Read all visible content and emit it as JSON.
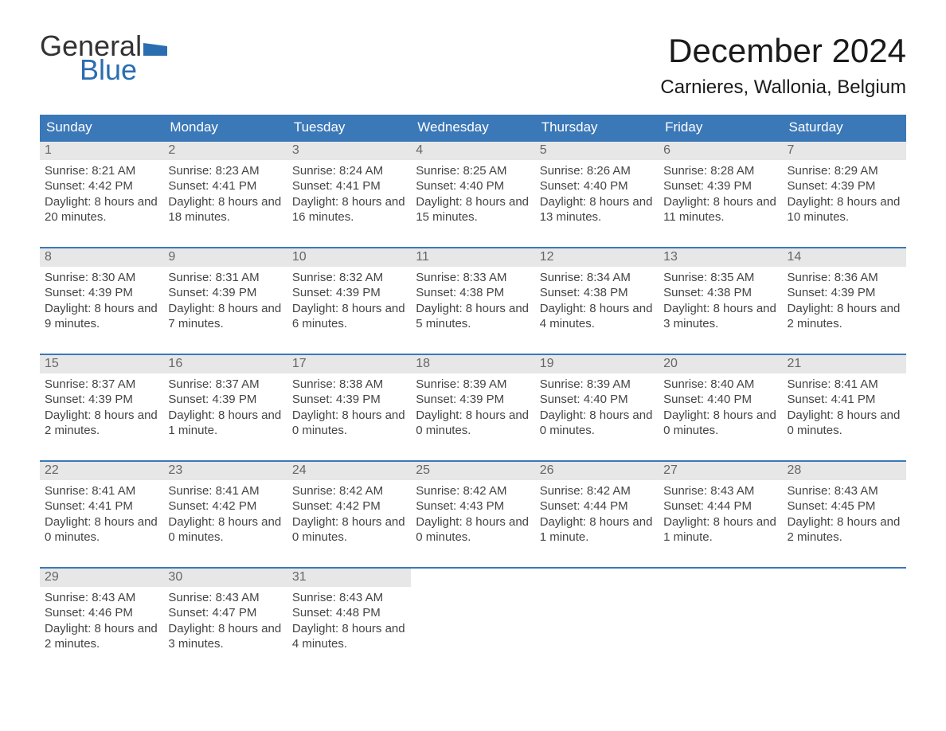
{
  "logo": {
    "general": "General",
    "blue": "Blue",
    "flag_color": "#2a6db0"
  },
  "title": "December 2024",
  "location": "Carnieres, Wallonia, Belgium",
  "header_bg": "#3b78b8",
  "header_text_color": "#ffffff",
  "daynum_bg": "#e7e7e7",
  "daynum_color": "#666666",
  "body_text_color": "#444444",
  "border_color": "#3b78b8",
  "background_color": "#ffffff",
  "days_of_week": [
    "Sunday",
    "Monday",
    "Tuesday",
    "Wednesday",
    "Thursday",
    "Friday",
    "Saturday"
  ],
  "weeks": [
    [
      {
        "n": "1",
        "sunrise": "Sunrise: 8:21 AM",
        "sunset": "Sunset: 4:42 PM",
        "daylight": "Daylight: 8 hours and 20 minutes."
      },
      {
        "n": "2",
        "sunrise": "Sunrise: 8:23 AM",
        "sunset": "Sunset: 4:41 PM",
        "daylight": "Daylight: 8 hours and 18 minutes."
      },
      {
        "n": "3",
        "sunrise": "Sunrise: 8:24 AM",
        "sunset": "Sunset: 4:41 PM",
        "daylight": "Daylight: 8 hours and 16 minutes."
      },
      {
        "n": "4",
        "sunrise": "Sunrise: 8:25 AM",
        "sunset": "Sunset: 4:40 PM",
        "daylight": "Daylight: 8 hours and 15 minutes."
      },
      {
        "n": "5",
        "sunrise": "Sunrise: 8:26 AM",
        "sunset": "Sunset: 4:40 PM",
        "daylight": "Daylight: 8 hours and 13 minutes."
      },
      {
        "n": "6",
        "sunrise": "Sunrise: 8:28 AM",
        "sunset": "Sunset: 4:39 PM",
        "daylight": "Daylight: 8 hours and 11 minutes."
      },
      {
        "n": "7",
        "sunrise": "Sunrise: 8:29 AM",
        "sunset": "Sunset: 4:39 PM",
        "daylight": "Daylight: 8 hours and 10 minutes."
      }
    ],
    [
      {
        "n": "8",
        "sunrise": "Sunrise: 8:30 AM",
        "sunset": "Sunset: 4:39 PM",
        "daylight": "Daylight: 8 hours and 9 minutes."
      },
      {
        "n": "9",
        "sunrise": "Sunrise: 8:31 AM",
        "sunset": "Sunset: 4:39 PM",
        "daylight": "Daylight: 8 hours and 7 minutes."
      },
      {
        "n": "10",
        "sunrise": "Sunrise: 8:32 AM",
        "sunset": "Sunset: 4:39 PM",
        "daylight": "Daylight: 8 hours and 6 minutes."
      },
      {
        "n": "11",
        "sunrise": "Sunrise: 8:33 AM",
        "sunset": "Sunset: 4:38 PM",
        "daylight": "Daylight: 8 hours and 5 minutes."
      },
      {
        "n": "12",
        "sunrise": "Sunrise: 8:34 AM",
        "sunset": "Sunset: 4:38 PM",
        "daylight": "Daylight: 8 hours and 4 minutes."
      },
      {
        "n": "13",
        "sunrise": "Sunrise: 8:35 AM",
        "sunset": "Sunset: 4:38 PM",
        "daylight": "Daylight: 8 hours and 3 minutes."
      },
      {
        "n": "14",
        "sunrise": "Sunrise: 8:36 AM",
        "sunset": "Sunset: 4:39 PM",
        "daylight": "Daylight: 8 hours and 2 minutes."
      }
    ],
    [
      {
        "n": "15",
        "sunrise": "Sunrise: 8:37 AM",
        "sunset": "Sunset: 4:39 PM",
        "daylight": "Daylight: 8 hours and 2 minutes."
      },
      {
        "n": "16",
        "sunrise": "Sunrise: 8:37 AM",
        "sunset": "Sunset: 4:39 PM",
        "daylight": "Daylight: 8 hours and 1 minute."
      },
      {
        "n": "17",
        "sunrise": "Sunrise: 8:38 AM",
        "sunset": "Sunset: 4:39 PM",
        "daylight": "Daylight: 8 hours and 0 minutes."
      },
      {
        "n": "18",
        "sunrise": "Sunrise: 8:39 AM",
        "sunset": "Sunset: 4:39 PM",
        "daylight": "Daylight: 8 hours and 0 minutes."
      },
      {
        "n": "19",
        "sunrise": "Sunrise: 8:39 AM",
        "sunset": "Sunset: 4:40 PM",
        "daylight": "Daylight: 8 hours and 0 minutes."
      },
      {
        "n": "20",
        "sunrise": "Sunrise: 8:40 AM",
        "sunset": "Sunset: 4:40 PM",
        "daylight": "Daylight: 8 hours and 0 minutes."
      },
      {
        "n": "21",
        "sunrise": "Sunrise: 8:41 AM",
        "sunset": "Sunset: 4:41 PM",
        "daylight": "Daylight: 8 hours and 0 minutes."
      }
    ],
    [
      {
        "n": "22",
        "sunrise": "Sunrise: 8:41 AM",
        "sunset": "Sunset: 4:41 PM",
        "daylight": "Daylight: 8 hours and 0 minutes."
      },
      {
        "n": "23",
        "sunrise": "Sunrise: 8:41 AM",
        "sunset": "Sunset: 4:42 PM",
        "daylight": "Daylight: 8 hours and 0 minutes."
      },
      {
        "n": "24",
        "sunrise": "Sunrise: 8:42 AM",
        "sunset": "Sunset: 4:42 PM",
        "daylight": "Daylight: 8 hours and 0 minutes."
      },
      {
        "n": "25",
        "sunrise": "Sunrise: 8:42 AM",
        "sunset": "Sunset: 4:43 PM",
        "daylight": "Daylight: 8 hours and 0 minutes."
      },
      {
        "n": "26",
        "sunrise": "Sunrise: 8:42 AM",
        "sunset": "Sunset: 4:44 PM",
        "daylight": "Daylight: 8 hours and 1 minute."
      },
      {
        "n": "27",
        "sunrise": "Sunrise: 8:43 AM",
        "sunset": "Sunset: 4:44 PM",
        "daylight": "Daylight: 8 hours and 1 minute."
      },
      {
        "n": "28",
        "sunrise": "Sunrise: 8:43 AM",
        "sunset": "Sunset: 4:45 PM",
        "daylight": "Daylight: 8 hours and 2 minutes."
      }
    ],
    [
      {
        "n": "29",
        "sunrise": "Sunrise: 8:43 AM",
        "sunset": "Sunset: 4:46 PM",
        "daylight": "Daylight: 8 hours and 2 minutes."
      },
      {
        "n": "30",
        "sunrise": "Sunrise: 8:43 AM",
        "sunset": "Sunset: 4:47 PM",
        "daylight": "Daylight: 8 hours and 3 minutes."
      },
      {
        "n": "31",
        "sunrise": "Sunrise: 8:43 AM",
        "sunset": "Sunset: 4:48 PM",
        "daylight": "Daylight: 8 hours and 4 minutes."
      },
      {
        "empty": true
      },
      {
        "empty": true
      },
      {
        "empty": true
      },
      {
        "empty": true
      }
    ]
  ]
}
